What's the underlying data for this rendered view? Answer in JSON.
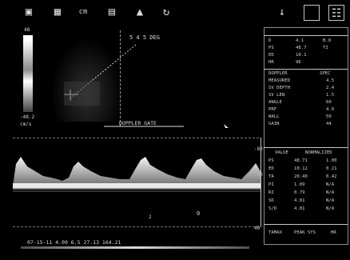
{
  "toolbar": {
    "icons": [
      "monitor-icon",
      "grid-icon",
      "measure-icon",
      "image-icon",
      "cursor-icon",
      "refresh-icon",
      "arrow-down-icon",
      "capture-icon",
      "grid-box-icon"
    ],
    "label_cm": "cm"
  },
  "scale": {
    "top": "48",
    "bottom": "-48.2",
    "unit": "cm/s"
  },
  "bmode": {
    "angle_label": "5 4 5 DEG"
  },
  "doppler_gate_label": "DOPPLER GATE",
  "spectrum": {
    "axis_top": "-80",
    "axis_mid": "-40",
    "axis_bottom": "40",
    "baseline_mark": "2",
    "marker": "0"
  },
  "footer": {
    "info": "07-15-11  4.00 6.5  27.13  164.21"
  },
  "panel": {
    "top_rows": [
      [
        "D",
        "4.1",
        "B.8"
      ],
      [
        "PS",
        "48.7",
        "TI"
      ],
      [
        "ED",
        "10.1",
        ""
      ],
      [
        "HR",
        "96",
        ""
      ]
    ],
    "mid_header": [
      "DOPPLER",
      "SPEC"
    ],
    "mid_rows": [
      [
        "MEASURED",
        "4.5"
      ],
      [
        "SV DEPTH",
        "2.4"
      ],
      [
        "SV LEN",
        "1.5"
      ],
      [
        "ANGLE",
        "60"
      ],
      [
        "PRF",
        "4.0"
      ],
      [
        "WALL",
        "50"
      ],
      [
        "GAIN",
        "44"
      ]
    ],
    "low_header": [
      "VALUE",
      "NORMALIZED"
    ],
    "low_rows": [
      [
        "PS",
        "48.71",
        "1.00"
      ],
      [
        "ED",
        "10.12",
        "0.21"
      ],
      [
        "TA",
        "20.40",
        "0.42"
      ],
      [
        "PI",
        "1.89",
        "N/A"
      ],
      [
        "RI",
        "0.79",
        "N/A"
      ],
      [
        "SD",
        "4.81",
        "N/A"
      ],
      [
        "S/D",
        "4.81",
        "N/A"
      ]
    ],
    "bottom_row": [
      "TAMAX",
      "PEAK SYS",
      "HR"
    ]
  }
}
